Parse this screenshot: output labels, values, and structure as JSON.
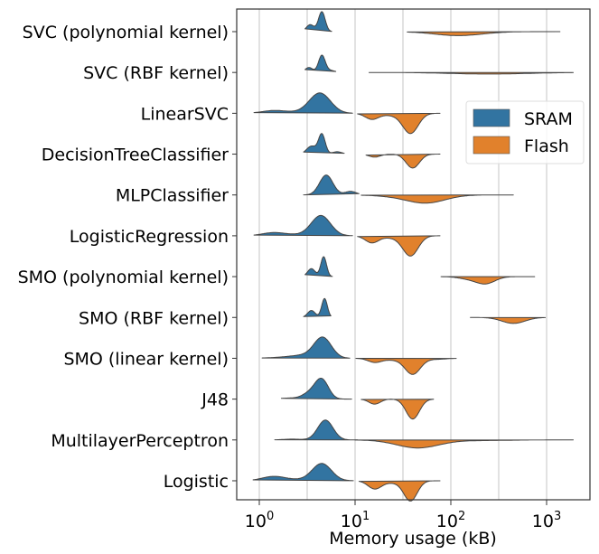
{
  "chart_data": {
    "type": "violin",
    "orientation": "horizontal",
    "split": true,
    "xlabel": "Memory usage (kB)",
    "xscale": "log",
    "xlim": [
      0.58,
      2960
    ],
    "xticks": [
      1,
      10,
      100,
      1000
    ],
    "xtick_labels": [
      {
        "base": "10",
        "exp": "0"
      },
      {
        "base": "10",
        "exp": "1"
      },
      {
        "base": "10",
        "exp": "2"
      },
      {
        "base": "10",
        "exp": "3"
      }
    ],
    "grid": "vertical, at each decade and half-decade",
    "legend": {
      "placement": "upper-right",
      "entries": [
        {
          "label": "SRAM",
          "color": "#3274a1"
        },
        {
          "label": "Flash",
          "color": "#e1812c"
        }
      ]
    },
    "categories": [
      "SVC (polynomial kernel)",
      "SVC (RBF kernel)",
      "LinearSVC",
      "DecisionTreeClassifier",
      "MLPClassifier",
      "LogisticRegression",
      "SMO (polynomial kernel)",
      "SMO (RBF kernel)",
      "SMO (linear kernel)",
      "J48",
      "MultilayerPerceptron",
      "Logistic"
    ],
    "series": [
      {
        "name": "SRAM",
        "violins": [
          {
            "min": 3.0,
            "max": 5.7,
            "peaks": [
              [
                4.5,
                0.035,
                1.0
              ],
              [
                3.4,
                0.04,
                0.35
              ]
            ]
          },
          {
            "min": 3.0,
            "max": 6.3,
            "peaks": [
              [
                4.5,
                0.035,
                0.85
              ],
              [
                3.3,
                0.04,
                0.25
              ],
              [
                5.5,
                0.05,
                0.1
              ]
            ]
          },
          {
            "min": 0.88,
            "max": 9.4,
            "peaks": [
              [
                4.3,
                0.11,
                1.0
              ],
              [
                1.4,
                0.12,
                0.12
              ],
              [
                2.5,
                0.2,
                0.05
              ]
            ]
          },
          {
            "min": 2.9,
            "max": 7.7,
            "peaks": [
              [
                4.5,
                0.035,
                1.0
              ],
              [
                3.5,
                0.05,
                0.4
              ],
              [
                6.5,
                0.05,
                0.12
              ]
            ]
          },
          {
            "min": 2.9,
            "max": 11,
            "peaks": [
              [
                5.0,
                0.07,
                1.0
              ],
              [
                9.0,
                0.06,
                0.18
              ]
            ]
          },
          {
            "min": 0.88,
            "max": 9.4,
            "peaks": [
              [
                4.4,
                0.1,
                1.0
              ],
              [
                1.4,
                0.12,
                0.14
              ],
              [
                2.5,
                0.2,
                0.05
              ]
            ]
          },
          {
            "min": 3.0,
            "max": 5.8,
            "peaks": [
              [
                4.7,
                0.03,
                1.0
              ],
              [
                3.5,
                0.04,
                0.4
              ]
            ]
          },
          {
            "min": 2.9,
            "max": 5.6,
            "peaks": [
              [
                4.8,
                0.03,
                0.95
              ],
              [
                3.5,
                0.04,
                0.35
              ]
            ]
          },
          {
            "min": 1.07,
            "max": 8.8,
            "peaks": [
              [
                4.6,
                0.09,
                1.0
              ],
              [
                3.0,
                0.15,
                0.15
              ],
              [
                1.6,
                0.15,
                0.03
              ]
            ]
          },
          {
            "min": 1.7,
            "max": 9.2,
            "peaks": [
              [
                4.5,
                0.07,
                0.95
              ],
              [
                3.4,
                0.08,
                0.3
              ],
              [
                2.0,
                0.1,
                0.05
              ]
            ]
          },
          {
            "min": 1.45,
            "max": 10.6,
            "peaks": [
              [
                4.9,
                0.08,
                1.0
              ],
              [
                2.2,
                0.1,
                0.04
              ]
            ]
          },
          {
            "min": 0.86,
            "max": 9.6,
            "peaks": [
              [
                4.5,
                0.1,
                0.85
              ],
              [
                1.4,
                0.12,
                0.2
              ],
              [
                2.5,
                0.2,
                0.05
              ]
            ]
          }
        ]
      },
      {
        "name": "Flash",
        "violins": [
          {
            "min": 35,
            "max": 1380,
            "peaks": [
              [
                120,
                0.25,
                0.2
              ]
            ]
          },
          {
            "min": 14,
            "max": 1900,
            "peaks": [
              [
                250,
                0.4,
                0.08
              ]
            ]
          },
          {
            "min": 10.6,
            "max": 77,
            "peaks": [
              [
                38,
                0.08,
                1.0
              ],
              [
                15,
                0.07,
                0.3
              ],
              [
                25,
                0.1,
                0.1
              ]
            ]
          },
          {
            "min": 13,
            "max": 77,
            "peaks": [
              [
                40,
                0.07,
                0.7
              ],
              [
                16,
                0.06,
                0.15
              ]
            ]
          },
          {
            "min": 11.6,
            "max": 450,
            "peaks": [
              [
                55,
                0.2,
                0.4
              ],
              [
                25,
                0.2,
                0.05
              ]
            ]
          },
          {
            "min": 10.6,
            "max": 77,
            "peaks": [
              [
                38,
                0.08,
                1.0
              ],
              [
                15,
                0.07,
                0.35
              ],
              [
                25,
                0.1,
                0.1
              ]
            ]
          },
          {
            "min": 79,
            "max": 750,
            "peaks": [
              [
                230,
                0.1,
                0.35
              ],
              [
                150,
                0.1,
                0.1
              ]
            ]
          },
          {
            "min": 160,
            "max": 970,
            "peaks": [
              [
                450,
                0.12,
                0.3
              ]
            ]
          },
          {
            "min": 10.2,
            "max": 114,
            "peaks": [
              [
                40,
                0.08,
                0.8
              ],
              [
                16,
                0.07,
                0.2
              ],
              [
                25,
                0.1,
                0.08
              ],
              [
                70,
                0.1,
                0.05
              ]
            ]
          },
          {
            "min": 11.6,
            "max": 66,
            "peaks": [
              [
                40,
                0.07,
                1.0
              ],
              [
                16,
                0.06,
                0.25
              ]
            ]
          },
          {
            "min": 10,
            "max": 1900,
            "peaks": [
              [
                45,
                0.22,
                0.4
              ],
              [
                200,
                0.3,
                0.03
              ]
            ]
          },
          {
            "min": 11,
            "max": 77,
            "peaks": [
              [
                38,
                0.07,
                1.0
              ],
              [
                16,
                0.07,
                0.4
              ],
              [
                25,
                0.1,
                0.1
              ]
            ]
          }
        ]
      }
    ]
  }
}
